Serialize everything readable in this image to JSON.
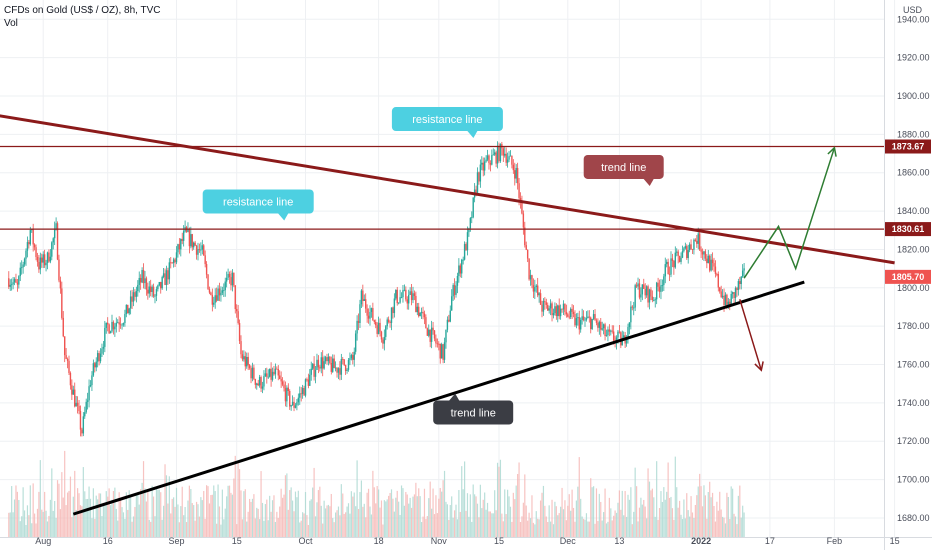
{
  "header": {
    "title": "CFDs on Gold (US$ / OZ), 8h, TVC",
    "indicator": "Vol",
    "currency": "USD"
  },
  "colors": {
    "up": "#26a69a",
    "down": "#ef5350",
    "trendline_upper": "#8b1a1a",
    "trendline_lower": "#000000",
    "resistance": "#8b1a1a",
    "arrow_up": "#2e7d32",
    "arrow_down": "#8b1a1a",
    "callout_cyan": "#4dd0e1",
    "callout_maroon": "#a0454a",
    "callout_dark": "#3b3d44",
    "price_badge": "#ef5350",
    "resistance_badge": "#8b1a1a"
  },
  "chart_data": {
    "type": "candlestick",
    "title": "CFDs on Gold (US$ / OZ), 8h, TVC",
    "ylim": [
      1675,
      1945
    ],
    "y_ticks": [
      1680,
      1700,
      1720,
      1740,
      1760,
      1780,
      1800,
      1820,
      1840,
      1860,
      1880,
      1900,
      1920,
      1940
    ],
    "x_ticks": [
      "Aug",
      "16",
      "Sep",
      "15",
      "Oct",
      "18",
      "Nov",
      "15",
      "Dec",
      "13",
      "2022",
      "17",
      "Feb",
      "15"
    ],
    "x_start": "2021-07-24",
    "price_path": [
      [
        "2021-07-24",
        1805
      ],
      [
        "2021-07-26",
        1800
      ],
      [
        "2021-07-29",
        1830
      ],
      [
        "2021-07-31",
        1812
      ],
      [
        "2021-08-02",
        1815
      ],
      [
        "2021-08-04",
        1830
      ],
      [
        "2021-08-06",
        1765
      ],
      [
        "2021-08-09",
        1735
      ],
      [
        "2021-08-10",
        1725
      ],
      [
        "2021-08-12",
        1752
      ],
      [
        "2021-08-16",
        1780
      ],
      [
        "2021-08-20",
        1785
      ],
      [
        "2021-08-24",
        1805
      ],
      [
        "2021-08-27",
        1795
      ],
      [
        "2021-08-31",
        1812
      ],
      [
        "2021-09-03",
        1828
      ],
      [
        "2021-09-07",
        1818
      ],
      [
        "2021-09-09",
        1795
      ],
      [
        "2021-09-14",
        1805
      ],
      [
        "2021-09-16",
        1765
      ],
      [
        "2021-09-20",
        1750
      ],
      [
        "2021-09-24",
        1755
      ],
      [
        "2021-09-28",
        1738
      ],
      [
        "2021-09-30",
        1745
      ],
      [
        "2021-10-04",
        1762
      ],
      [
        "2021-10-08",
        1758
      ],
      [
        "2021-10-12",
        1762
      ],
      [
        "2021-10-14",
        1795
      ],
      [
        "2021-10-19",
        1775
      ],
      [
        "2021-10-22",
        1795
      ],
      [
        "2021-10-26",
        1795
      ],
      [
        "2021-10-29",
        1780
      ],
      [
        "2021-11-02",
        1765
      ],
      [
        "2021-11-04",
        1795
      ],
      [
        "2021-11-08",
        1828
      ],
      [
        "2021-11-10",
        1858
      ],
      [
        "2021-11-12",
        1865
      ],
      [
        "2021-11-16",
        1872
      ],
      [
        "2021-11-19",
        1860
      ],
      [
        "2021-11-22",
        1808
      ],
      [
        "2021-11-25",
        1790
      ],
      [
        "2021-11-30",
        1788
      ],
      [
        "2021-12-03",
        1782
      ],
      [
        "2021-12-07",
        1783
      ],
      [
        "2021-12-10",
        1775
      ],
      [
        "2021-12-14",
        1772
      ],
      [
        "2021-12-17",
        1800
      ],
      [
        "2021-12-21",
        1795
      ],
      [
        "2021-12-24",
        1810
      ],
      [
        "2021-12-28",
        1818
      ],
      [
        "2021-12-31",
        1826
      ],
      [
        "2022-01-04",
        1808
      ],
      [
        "2022-01-07",
        1790
      ],
      [
        "2022-01-11",
        1806
      ]
    ],
    "current_price": 1805.7,
    "labels": {
      "current_price": "1805.70",
      "resistance_upper": "1873.67",
      "resistance_lower": "1830.61"
    },
    "resistance_levels": [
      1873.67,
      1830.61
    ],
    "trendline_upper": [
      [
        "2021-07-21",
        1890
      ],
      [
        "2022-02-15",
        1813
      ]
    ],
    "trendline_lower": [
      [
        "2021-08-08",
        1682
      ],
      [
        "2022-01-25",
        1803
      ]
    ],
    "projection_up": [
      [
        "2022-01-11",
        1805
      ],
      [
        "2022-01-19",
        1832
      ],
      [
        "2022-01-23",
        1810
      ],
      [
        "2022-02-01",
        1873
      ]
    ],
    "projection_down": [
      [
        "2022-01-10",
        1794
      ],
      [
        "2022-01-15",
        1757
      ]
    ],
    "annotations": [
      {
        "text": "resistance line",
        "date": "2021-11-03",
        "price": 1888,
        "style": "cyan",
        "pointer": "down"
      },
      {
        "text": "resistance line",
        "date": "2021-09-20",
        "price": 1845,
        "style": "cyan",
        "pointer": "down"
      },
      {
        "text": "trend line",
        "date": "2021-12-14",
        "price": 1863,
        "style": "maroon",
        "pointer": "down"
      },
      {
        "text": "trend line",
        "date": "2021-11-09",
        "price": 1735,
        "style": "dark",
        "pointer": "up"
      }
    ]
  }
}
